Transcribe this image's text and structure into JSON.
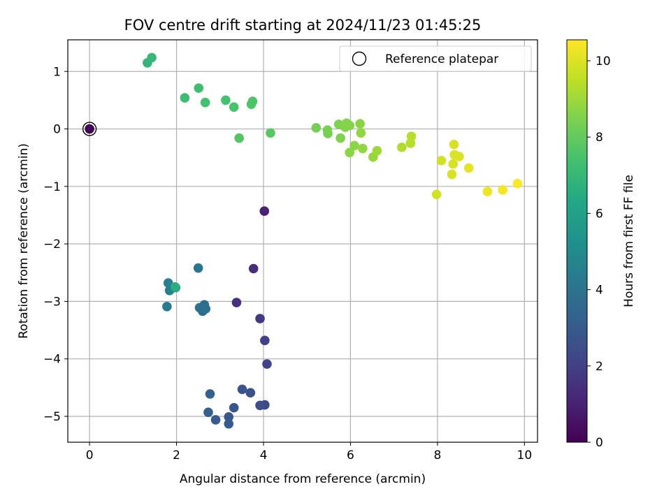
{
  "chart_data": {
    "type": "scatter",
    "title": "FOV centre drift starting at 2024/11/23 01:45:25",
    "xlabel": "Angular distance from reference (arcmin)",
    "ylabel": "Rotation from reference (arcmin)",
    "xlim": [
      -0.5,
      10.3
    ],
    "ylim": [
      -5.45,
      1.55
    ],
    "xticks": [
      0,
      2,
      4,
      6,
      8,
      10
    ],
    "yticks": [
      1,
      0,
      -1,
      -2,
      -3,
      -4,
      -5
    ],
    "grid": true,
    "legend": {
      "placement": "top-right",
      "entries": [
        "Reference platepar"
      ]
    },
    "reference_point": {
      "x": 0,
      "y": 0
    },
    "colorbar": {
      "label": "Hours from first FF file",
      "range": [
        0,
        10.55
      ],
      "ticks": [
        0,
        2,
        4,
        6,
        8,
        10
      ],
      "colormap": "viridis"
    },
    "points": [
      {
        "x": 0.0,
        "y": 0.0,
        "c": 0.0
      },
      {
        "x": 4.02,
        "y": -1.43,
        "c": 1.0
      },
      {
        "x": 3.77,
        "y": -2.43,
        "c": 1.4
      },
      {
        "x": 3.38,
        "y": -3.02,
        "c": 1.5
      },
      {
        "x": 3.92,
        "y": -3.3,
        "c": 1.8
      },
      {
        "x": 4.03,
        "y": -3.68,
        "c": 2.0
      },
      {
        "x": 4.08,
        "y": -4.09,
        "c": 2.1
      },
      {
        "x": 4.03,
        "y": -4.8,
        "c": 2.4
      },
      {
        "x": 3.92,
        "y": -4.81,
        "c": 2.5
      },
      {
        "x": 3.7,
        "y": -4.59,
        "c": 2.6
      },
      {
        "x": 3.51,
        "y": -4.53,
        "c": 2.7
      },
      {
        "x": 3.32,
        "y": -4.85,
        "c": 2.8
      },
      {
        "x": 3.2,
        "y": -5.01,
        "c": 2.9
      },
      {
        "x": 3.2,
        "y": -5.13,
        "c": 3.0
      },
      {
        "x": 2.9,
        "y": -5.06,
        "c": 3.1
      },
      {
        "x": 2.73,
        "y": -4.93,
        "c": 3.2
      },
      {
        "x": 2.77,
        "y": -4.61,
        "c": 3.3
      },
      {
        "x": 2.6,
        "y": -3.17,
        "c": 3.6
      },
      {
        "x": 2.64,
        "y": -3.06,
        "c": 3.7
      },
      {
        "x": 2.53,
        "y": -3.11,
        "c": 3.8
      },
      {
        "x": 2.67,
        "y": -3.13,
        "c": 3.9
      },
      {
        "x": 2.5,
        "y": -2.42,
        "c": 4.1
      },
      {
        "x": 1.78,
        "y": -3.09,
        "c": 4.3
      },
      {
        "x": 1.81,
        "y": -2.68,
        "c": 4.5
      },
      {
        "x": 1.84,
        "y": -2.81,
        "c": 4.6
      },
      {
        "x": 1.98,
        "y": -2.76,
        "c": 5.0
      },
      {
        "x": 1.97,
        "y": -2.75,
        "c": 6.6
      },
      {
        "x": 1.33,
        "y": 1.15,
        "c": 6.9
      },
      {
        "x": 1.43,
        "y": 1.24,
        "c": 7.0
      },
      {
        "x": 2.19,
        "y": 0.54,
        "c": 7.2
      },
      {
        "x": 2.51,
        "y": 0.71,
        "c": 7.3
      },
      {
        "x": 2.66,
        "y": 0.46,
        "c": 7.4
      },
      {
        "x": 3.13,
        "y": 0.5,
        "c": 7.4
      },
      {
        "x": 3.32,
        "y": 0.38,
        "c": 7.5
      },
      {
        "x": 3.72,
        "y": 0.43,
        "c": 7.6
      },
      {
        "x": 3.75,
        "y": 0.48,
        "c": 7.6
      },
      {
        "x": 3.44,
        "y": -0.16,
        "c": 7.7
      },
      {
        "x": 4.16,
        "y": -0.07,
        "c": 7.8
      },
      {
        "x": 5.21,
        "y": 0.02,
        "c": 8.3
      },
      {
        "x": 5.47,
        "y": -0.02,
        "c": 8.4
      },
      {
        "x": 5.48,
        "y": -0.08,
        "c": 8.4
      },
      {
        "x": 5.73,
        "y": 0.08,
        "c": 8.5
      },
      {
        "x": 5.77,
        "y": -0.16,
        "c": 8.5
      },
      {
        "x": 5.88,
        "y": 0.03,
        "c": 8.6
      },
      {
        "x": 5.91,
        "y": 0.1,
        "c": 8.6
      },
      {
        "x": 5.98,
        "y": 0.06,
        "c": 8.6
      },
      {
        "x": 5.98,
        "y": -0.41,
        "c": 8.7
      },
      {
        "x": 6.09,
        "y": -0.29,
        "c": 8.7
      },
      {
        "x": 6.22,
        "y": 0.09,
        "c": 8.7
      },
      {
        "x": 6.24,
        "y": -0.07,
        "c": 8.8
      },
      {
        "x": 6.28,
        "y": -0.34,
        "c": 8.8
      },
      {
        "x": 6.52,
        "y": -0.49,
        "c": 8.9
      },
      {
        "x": 6.61,
        "y": -0.38,
        "c": 9.0
      },
      {
        "x": 7.18,
        "y": -0.32,
        "c": 9.3
      },
      {
        "x": 7.38,
        "y": -0.25,
        "c": 9.4
      },
      {
        "x": 7.4,
        "y": -0.13,
        "c": 9.4
      },
      {
        "x": 7.98,
        "y": -1.14,
        "c": 9.8
      },
      {
        "x": 8.09,
        "y": -0.55,
        "c": 9.8
      },
      {
        "x": 8.33,
        "y": -0.79,
        "c": 9.9
      },
      {
        "x": 8.36,
        "y": -0.61,
        "c": 9.9
      },
      {
        "x": 8.38,
        "y": -0.27,
        "c": 9.9
      },
      {
        "x": 8.39,
        "y": -0.45,
        "c": 10.0
      },
      {
        "x": 8.5,
        "y": -0.48,
        "c": 10.0
      },
      {
        "x": 8.72,
        "y": -0.68,
        "c": 10.1
      },
      {
        "x": 9.15,
        "y": -1.09,
        "c": 10.3
      },
      {
        "x": 9.5,
        "y": -1.06,
        "c": 10.4
      },
      {
        "x": 9.84,
        "y": -0.95,
        "c": 10.5
      }
    ]
  }
}
